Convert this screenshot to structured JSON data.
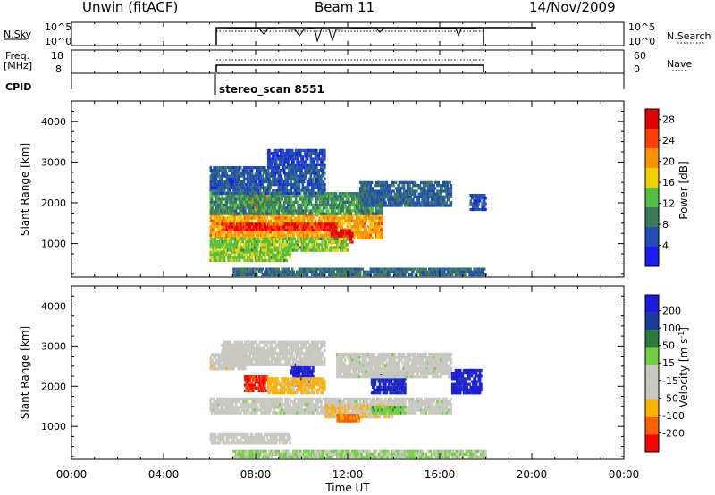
{
  "header": {
    "station": "Unwin (fitACF)",
    "beam": "Beam 11",
    "date": "14/Nov/2009"
  },
  "top_panels": {
    "nsky": {
      "left_label": "N.Sky",
      "left_ticks": [
        "10^5",
        "10^0"
      ],
      "right_ticks": [
        "10^5",
        "10^0"
      ],
      "right_label": "N.Search"
    },
    "freq": {
      "left_label_1": "Freq.",
      "left_label_2": "[MHz]",
      "left_ticks": [
        "18",
        "8"
      ],
      "right_ticks": [
        "60",
        "0"
      ],
      "right_label": "Nave"
    },
    "cpid": {
      "label": "CPID",
      "program": "stereo_scan 8551"
    }
  },
  "colors": {
    "power": [
      "#1a1aff",
      "#1f4fb0",
      "#3c7a5a",
      "#50c040",
      "#f0d000",
      "#ff9000",
      "#ff4000",
      "#e00000"
    ],
    "velocity": [
      "#ff0000",
      "#ff6000",
      "#ffb000",
      "#c8c8c0",
      "#c8c8c0",
      "#70d040",
      "#2a7a3a",
      "#1a3aa0",
      "#1a1ae0"
    ]
  },
  "chart_data": [
    {
      "type": "heatmap",
      "title": "Power",
      "ylabel": "Slant Range [km]",
      "xlabel": "Time UT",
      "xlim": [
        0,
        24
      ],
      "ylim": [
        180,
        4500
      ],
      "y_ticks": [
        "1000",
        "2000",
        "3000",
        "4000"
      ],
      "x_ticks": [
        "00:00",
        "04:00",
        "08:00",
        "12:00",
        "16:00",
        "20:00",
        "00:00"
      ],
      "colorbar": {
        "label": "Power [dB]",
        "ticks": [
          "4",
          "8",
          "12",
          "16",
          "20",
          "24",
          "28"
        ],
        "range": [
          0,
          30
        ]
      },
      "data_extent_hours": [
        6.0,
        18.0
      ],
      "regions": [
        {
          "t": [
            6.0,
            13.5
          ],
          "r": [
            1100,
            1700
          ],
          "value": 20
        },
        {
          "t": [
            6.5,
            11.5
          ],
          "r": [
            1300,
            1500
          ],
          "value": 26
        },
        {
          "t": [
            11.2,
            12.2
          ],
          "r": [
            1000,
            1300
          ],
          "value": 28
        },
        {
          "t": [
            7.5,
            8.5
          ],
          "r": [
            1850,
            2250
          ],
          "value": 24
        },
        {
          "t": [
            6.0,
            9.5
          ],
          "r": [
            550,
            800
          ],
          "value": 14
        },
        {
          "t": [
            6.0,
            12.0
          ],
          "r": [
            800,
            1100
          ],
          "value": 14
        },
        {
          "t": [
            6.0,
            13.5
          ],
          "r": [
            1700,
            2200
          ],
          "value": 10
        },
        {
          "t": [
            6.0,
            11.0
          ],
          "r": [
            2200,
            2900
          ],
          "value": 6
        },
        {
          "t": [
            8.5,
            11.0
          ],
          "r": [
            2900,
            3300
          ],
          "value": 5
        },
        {
          "t": [
            12.5,
            16.5
          ],
          "r": [
            1900,
            2500
          ],
          "value": 7
        },
        {
          "t": [
            17.3,
            18.0
          ],
          "r": [
            1800,
            2200
          ],
          "value": 5
        },
        {
          "t": [
            7.0,
            18.0
          ],
          "r": [
            200,
            400
          ],
          "value": 8
        }
      ]
    },
    {
      "type": "heatmap",
      "title": "Velocity",
      "ylabel": "Slant Range [km]",
      "xlabel": "Time UT",
      "xlim": [
        0,
        24
      ],
      "ylim": [
        180,
        4500
      ],
      "y_ticks": [
        "1000",
        "2000",
        "3000",
        "4000"
      ],
      "x_ticks": [
        "00:00",
        "04:00",
        "08:00",
        "12:00",
        "16:00",
        "20:00",
        "00:00"
      ],
      "colorbar": {
        "label": "Velocity [m s^-1]",
        "ticks": [
          "200",
          "100",
          "50",
          "15",
          "-15",
          "-50",
          "-100",
          "-200"
        ],
        "range": [
          -250,
          250
        ]
      },
      "data_extent_hours": [
        6.0,
        18.0
      ],
      "regions": [
        {
          "t": [
            6.0,
            16.5
          ],
          "r": [
            1300,
            1700
          ],
          "value": 0
        },
        {
          "t": [
            11.0,
            14.0
          ],
          "r": [
            1200,
            1500
          ],
          "value": -80
        },
        {
          "t": [
            11.5,
            12.5
          ],
          "r": [
            1100,
            1300
          ],
          "value": -150
        },
        {
          "t": [
            13.0,
            14.5
          ],
          "r": [
            1300,
            1500
          ],
          "value": 60
        },
        {
          "t": [
            7.5,
            8.5
          ],
          "r": [
            1850,
            2250
          ],
          "value": -200
        },
        {
          "t": [
            6.0,
            7.5
          ],
          "r": [
            2400,
            2800
          ],
          "value": -60
        },
        {
          "t": [
            9.5,
            10.5
          ],
          "r": [
            2000,
            2600
          ],
          "value": 220
        },
        {
          "t": [
            13.0,
            14.5
          ],
          "r": [
            1800,
            2300
          ],
          "value": 200
        },
        {
          "t": [
            8.5,
            11.0
          ],
          "r": [
            1800,
            2200
          ],
          "value": -100
        },
        {
          "t": [
            11.5,
            16.5
          ],
          "r": [
            2200,
            2800
          ],
          "value": 0
        },
        {
          "t": [
            6.0,
            9.5
          ],
          "r": [
            550,
            800
          ],
          "value": -50
        },
        {
          "t": [
            6.5,
            11.0
          ],
          "r": [
            2500,
            3100
          ],
          "value": -40
        },
        {
          "t": [
            16.5,
            17.8
          ],
          "r": [
            1800,
            2400
          ],
          "value": 210
        },
        {
          "t": [
            7.0,
            18.0
          ],
          "r": [
            200,
            400
          ],
          "value": 30
        }
      ]
    }
  ]
}
